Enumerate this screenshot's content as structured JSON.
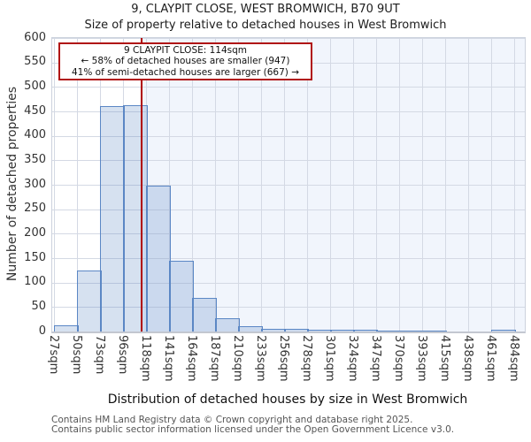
{
  "title": "9, CLAYPIT CLOSE, WEST BROMWICH, B70 9UT",
  "subtitle": "Size of property relative to detached houses in West Bromwich",
  "annotation": {
    "line1": "9 CLAYPIT CLOSE: 114sqm",
    "line2": "← 58% of detached houses are smaller (947)",
    "line3": "41% of semi-detached houses are larger (667) →"
  },
  "chart_data": {
    "type": "bar",
    "title": "9, CLAYPIT CLOSE, WEST BROMWICH, B70 9UT",
    "subtitle": "Size of property relative to detached houses in West Bromwich",
    "xlabel": "Distribution of detached houses by size in West Bromwich",
    "ylabel": "Number of detached properties",
    "ylim": [
      0,
      600
    ],
    "ytick_step": 50,
    "grid": true,
    "legend": false,
    "categories": [
      "27sqm",
      "50sqm",
      "73sqm",
      "96sqm",
      "118sqm",
      "141sqm",
      "164sqm",
      "187sqm",
      "210sqm",
      "233sqm",
      "256sqm",
      "278sqm",
      "301sqm",
      "324sqm",
      "347sqm",
      "370sqm",
      "393sqm",
      "415sqm",
      "438sqm",
      "461sqm",
      "484sqm"
    ],
    "bin_edges_sqm": [
      27,
      50,
      73,
      96,
      118,
      141,
      164,
      187,
      210,
      233,
      256,
      278,
      301,
      324,
      347,
      370,
      393,
      415,
      438,
      461,
      484
    ],
    "values": [
      13,
      125,
      460,
      462,
      298,
      145,
      68,
      27,
      11,
      6,
      5,
      4,
      3,
      3,
      2,
      2,
      2,
      0,
      0,
      3
    ],
    "marker": {
      "value_sqm": 114,
      "label": "9 CLAYPIT CLOSE: 114sqm",
      "shaded_region": "right-of-marker"
    },
    "colors": {
      "bar_fill": "rgba(91,135,197,0.25)",
      "bar_border": "#5b87c5",
      "marker_line": "#b00000",
      "annotation_border": "#b01212",
      "grid": "#d4d9e4",
      "shade": "#f1f5fc"
    }
  },
  "footer": {
    "line1": "Contains HM Land Registry data © Crown copyright and database right 2025.",
    "line2": "Contains public sector information licensed under the Open Government Licence v3.0."
  }
}
